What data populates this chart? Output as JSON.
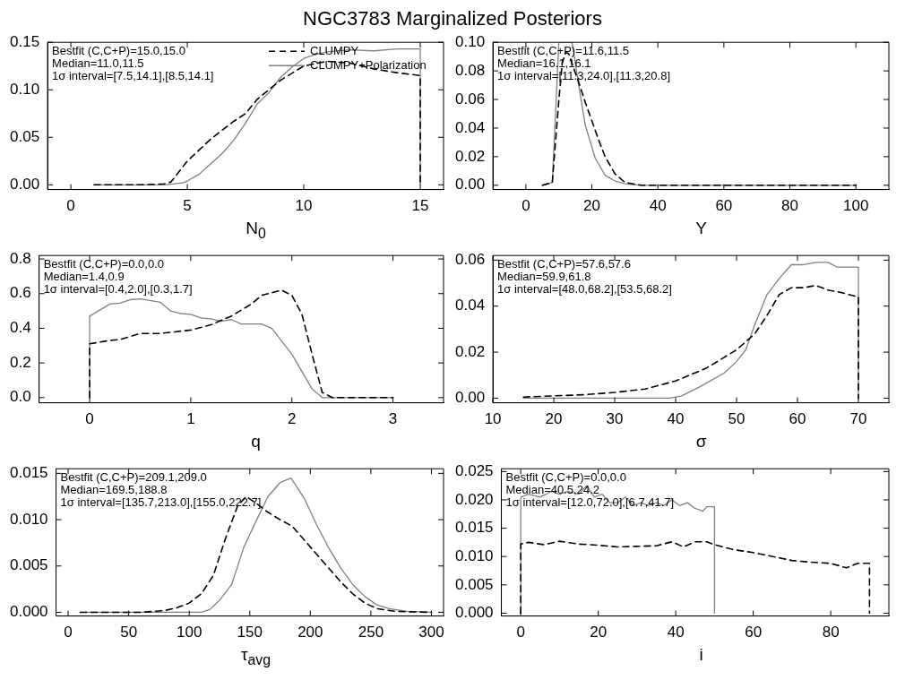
{
  "chart_data": [
    {
      "type": "line",
      "title": "NGC3783  Marginalized Posteriors",
      "xlabel": "N$_{0}$",
      "legend": "top right",
      "grid": false,
      "annotations": [
        "Bestfit (C,C+P)=15.0,15.0",
        "Median=11.0,11.5",
        "1σ interval=[7.5,14.1],[8.5,14.1]"
      ],
      "xlim": [
        -1,
        16
      ],
      "xticks": [
        0,
        5,
        10,
        15
      ],
      "ylim": [
        -0.005,
        0.15
      ],
      "yticks": [
        {
          "value": 0,
          "label": "0.00"
        },
        {
          "value": 0.05,
          "label": "0.05"
        },
        {
          "value": 0.1,
          "label": "0.10"
        },
        {
          "value": 0.15,
          "label": "0.15"
        }
      ],
      "series": [
        {
          "name": "CLUMPY",
          "color": "#000000",
          "line_style": "dashed",
          "x": [
            1,
            2,
            3,
            4,
            4.3,
            5,
            6,
            7,
            7.5,
            8,
            9,
            10,
            11,
            12,
            13,
            14,
            15,
            15
          ],
          "values": [
            0,
            0,
            0,
            0.001,
            0.003,
            0.025,
            0.048,
            0.067,
            0.075,
            0.09,
            0.11,
            0.125,
            0.13,
            0.128,
            0.122,
            0.118,
            0.115,
            0
          ]
        },
        {
          "name": "CLUMPY+Polarization",
          "color": "#808080",
          "line_style": "solid",
          "x": [
            1,
            3,
            4,
            4.8,
            5,
            5.5,
            6,
            6.5,
            7,
            7.5,
            8,
            8.5,
            9,
            9.5,
            10,
            10.5,
            11,
            12,
            13,
            14,
            15,
            15
          ],
          "values": [
            0,
            0,
            0,
            0.002,
            0.004,
            0.011,
            0.022,
            0.033,
            0.047,
            0.065,
            0.085,
            0.097,
            0.113,
            0.124,
            0.133,
            0.137,
            0.14,
            0.142,
            0.141,
            0.143,
            0.143,
            0
          ]
        }
      ]
    },
    {
      "type": "line",
      "xlabel": "Y",
      "grid": false,
      "annotations": [
        "Bestfit (C,C+P)=11.6,11.5",
        "Median=16.1,16.1",
        "1σ interval=[11.3,24.0],[11.3,20.8]"
      ],
      "xlim": [
        -10,
        110
      ],
      "xticks": [
        0,
        20,
        40,
        60,
        80,
        100
      ],
      "ylim": [
        -0.003,
        0.1
      ],
      "yticks": [
        {
          "value": 0,
          "label": "0.00"
        },
        {
          "value": 0.02,
          "label": "0.02"
        },
        {
          "value": 0.04,
          "label": "0.04"
        },
        {
          "value": 0.06,
          "label": "0.06"
        },
        {
          "value": 0.08,
          "label": "0.08"
        },
        {
          "value": 0.1,
          "label": "0.10"
        }
      ],
      "series": [
        {
          "color": "#000000",
          "line_style": "dashed",
          "x": [
            5,
            8,
            10,
            11,
            12,
            13,
            14,
            16,
            18,
            20,
            22,
            24,
            27,
            30,
            35,
            100
          ],
          "values": [
            0,
            0.002,
            0.06,
            0.085,
            0.093,
            0.092,
            0.085,
            0.072,
            0.058,
            0.045,
            0.032,
            0.02,
            0.008,
            0.002,
            0,
            0
          ]
        },
        {
          "color": "#808080",
          "line_style": "solid",
          "x": [
            5,
            8,
            10,
            14,
            16,
            18,
            21,
            24,
            27,
            30,
            35,
            100
          ],
          "values": [
            0,
            0.002,
            0.1,
            0.1,
            0.07,
            0.042,
            0.019,
            0.007,
            0.003,
            0.001,
            0,
            0
          ]
        }
      ]
    },
    {
      "type": "line",
      "xlabel": "q",
      "grid": false,
      "annotations": [
        "Bestfit (C,C+P)=0.0,0.0",
        "Median=1.4,0.9",
        "1σ interval=[0.4,2.0],[0.3,1.7]"
      ],
      "xlim": [
        -0.5,
        3.5
      ],
      "xticks": [
        0,
        1,
        2,
        3
      ],
      "ylim": [
        -0.03,
        0.82
      ],
      "yticks": [
        {
          "value": 0,
          "label": "0.0"
        },
        {
          "value": 0.2,
          "label": "0.2"
        },
        {
          "value": 0.4,
          "label": "0.4"
        },
        {
          "value": 0.6,
          "label": "0.6"
        },
        {
          "value": 0.8,
          "label": "0.8"
        }
      ],
      "series": [
        {
          "color": "#000000",
          "line_style": "dashed",
          "x": [
            0,
            0,
            0.2,
            0.3,
            0.5,
            0.7,
            1.0,
            1.2,
            1.4,
            1.6,
            1.7,
            1.9,
            2.0,
            2.1,
            2.2,
            2.3,
            2.4,
            3.0
          ],
          "values": [
            0,
            0.31,
            0.33,
            0.335,
            0.37,
            0.37,
            0.39,
            0.42,
            0.47,
            0.54,
            0.59,
            0.62,
            0.59,
            0.48,
            0.25,
            0.03,
            0,
            0
          ]
        },
        {
          "color": "#808080",
          "line_style": "solid",
          "x": [
            0,
            0,
            0.2,
            0.3,
            0.4,
            0.5,
            0.7,
            0.8,
            0.9,
            1.0,
            1.1,
            1.2,
            1.3,
            1.4,
            1.5,
            1.7,
            1.8,
            2.0,
            2.2,
            2.3,
            3.0
          ],
          "values": [
            0,
            0.47,
            0.54,
            0.545,
            0.565,
            0.57,
            0.55,
            0.5,
            0.485,
            0.48,
            0.46,
            0.455,
            0.44,
            0.45,
            0.425,
            0.425,
            0.4,
            0.25,
            0.05,
            0,
            0
          ]
        }
      ]
    },
    {
      "type": "line",
      "xlabel": "σ",
      "grid": false,
      "annotations": [
        "Bestfit (C,C+P)=57.6,57.6",
        "Median=59.9,61.8",
        "1σ interval=[48.0,68.2],[53.5,68.2]"
      ],
      "xlim": [
        10,
        75
      ],
      "xticks": [
        10,
        20,
        30,
        40,
        50,
        60,
        70
      ],
      "ylim": [
        -0.002,
        0.062
      ],
      "yticks": [
        {
          "value": 0,
          "label": "0.00"
        },
        {
          "value": 0.02,
          "label": "0.02"
        },
        {
          "value": 0.04,
          "label": "0.04"
        },
        {
          "value": 0.06,
          "label": "0.06"
        }
      ],
      "series": [
        {
          "color": "#000000",
          "line_style": "dashed",
          "x": [
            15,
            20,
            25,
            30,
            35,
            40,
            45,
            50,
            53,
            55,
            57,
            59,
            61,
            63,
            65,
            67,
            70,
            70
          ],
          "values": [
            0.0005,
            0.001,
            0.0015,
            0.0025,
            0.004,
            0.0075,
            0.013,
            0.021,
            0.028,
            0.036,
            0.045,
            0.048,
            0.048,
            0.049,
            0.047,
            0.046,
            0.044,
            0
          ]
        },
        {
          "color": "#808080",
          "line_style": "solid",
          "x": [
            15,
            39,
            41,
            44,
            48,
            50,
            51.5,
            53,
            55,
            57,
            59,
            61,
            63,
            65,
            66.5,
            70,
            70
          ],
          "values": [
            0,
            0,
            0.001,
            0.005,
            0.011,
            0.016,
            0.021,
            0.032,
            0.045,
            0.052,
            0.058,
            0.058,
            0.059,
            0.059,
            0.057,
            0.057,
            0
          ]
        }
      ]
    },
    {
      "type": "line",
      "xlabel": "τ$_{avg}$",
      "grid": false,
      "annotations": [
        "Bestfit (C,C+P)=209.1,209.0",
        "Median=169.5,188.8",
        "1σ interval=[135.7,213.0],[155.0,222.7]"
      ],
      "xlim": [
        -10,
        310
      ],
      "xticks": [
        0,
        50,
        100,
        150,
        200,
        250,
        300
      ],
      "ylim": [
        -0.0004,
        0.0155
      ],
      "yticks": [
        {
          "value": 0,
          "label": "0.000"
        },
        {
          "value": 0.005,
          "label": "0.005"
        },
        {
          "value": 0.01,
          "label": "0.010"
        },
        {
          "value": 0.015,
          "label": "0.015"
        }
      ],
      "series": [
        {
          "color": "#000000",
          "line_style": "dashed",
          "x": [
            10,
            60,
            70,
            80,
            90,
            100,
            110,
            120,
            130,
            140,
            147,
            155,
            165,
            175,
            185,
            195,
            205,
            215,
            225,
            235,
            245,
            255,
            270,
            300
          ],
          "values": [
            0,
            0,
            0.0001,
            0.0002,
            0.0005,
            0.001,
            0.002,
            0.004,
            0.008,
            0.0115,
            0.0125,
            0.0118,
            0.0108,
            0.01,
            0.0093,
            0.0078,
            0.0063,
            0.0048,
            0.0033,
            0.002,
            0.001,
            0.0004,
            0.0001,
            0
          ]
        },
        {
          "color": "#808080",
          "line_style": "solid",
          "x": [
            10,
            110,
            117,
            125,
            135,
            145,
            155,
            165,
            175,
            184,
            195,
            205,
            215,
            225,
            235,
            245,
            255,
            265,
            280,
            300
          ],
          "values": [
            0,
            0,
            0.0003,
            0.0013,
            0.003,
            0.007,
            0.0098,
            0.0125,
            0.014,
            0.0145,
            0.0123,
            0.0095,
            0.007,
            0.0048,
            0.003,
            0.0017,
            0.0008,
            0.0004,
            0.0001,
            0
          ]
        }
      ]
    },
    {
      "type": "line",
      "xlabel": "i",
      "grid": false,
      "annotations": [
        "Bestfit (C,C+P)=0.0,0.0",
        "Median=40.5,24.2",
        "1σ interval=[12.0,72.0],[6.7,41.7]"
      ],
      "xlim": [
        -5,
        95
      ],
      "xticks": [
        0,
        20,
        40,
        60,
        80
      ],
      "ylim": [
        -0.0005,
        0.0255
      ],
      "yticks": [
        {
          "value": 0,
          "label": "0.000"
        },
        {
          "value": 0.005,
          "label": "0.005"
        },
        {
          "value": 0.01,
          "label": "0.010"
        },
        {
          "value": 0.015,
          "label": "0.015"
        },
        {
          "value": 0.02,
          "label": "0.020"
        },
        {
          "value": 0.025,
          "label": "0.025"
        }
      ],
      "series": [
        {
          "color": "#000000",
          "line_style": "dashed",
          "x": [
            0,
            0,
            2,
            6,
            10,
            15,
            20,
            25,
            30,
            35,
            39,
            42,
            45,
            48,
            50,
            55,
            60,
            65,
            70,
            75,
            80,
            84,
            87,
            90,
            90
          ],
          "values": [
            0,
            0.0122,
            0.0125,
            0.0121,
            0.0127,
            0.0122,
            0.012,
            0.0117,
            0.0118,
            0.0119,
            0.0126,
            0.0117,
            0.0126,
            0.0126,
            0.0121,
            0.0112,
            0.0107,
            0.01,
            0.0093,
            0.009,
            0.0088,
            0.008,
            0.0088,
            0.0088,
            0
          ]
        },
        {
          "color": "#808080",
          "line_style": "solid",
          "x": [
            0,
            0,
            2,
            5,
            8,
            10,
            12,
            15,
            17,
            19,
            21,
            23,
            25,
            27,
            29,
            31,
            33,
            35,
            37,
            39,
            41,
            43,
            45,
            47,
            48,
            50,
            50
          ],
          "values": [
            0,
            0.0205,
            0.021,
            0.0205,
            0.0215,
            0.021,
            0.0215,
            0.021,
            0.0225,
            0.0205,
            0.021,
            0.0195,
            0.0195,
            0.0205,
            0.019,
            0.0195,
            0.019,
            0.0195,
            0.019,
            0.02,
            0.019,
            0.0195,
            0.0185,
            0.018,
            0.0188,
            0.0188,
            0
          ]
        }
      ]
    }
  ]
}
